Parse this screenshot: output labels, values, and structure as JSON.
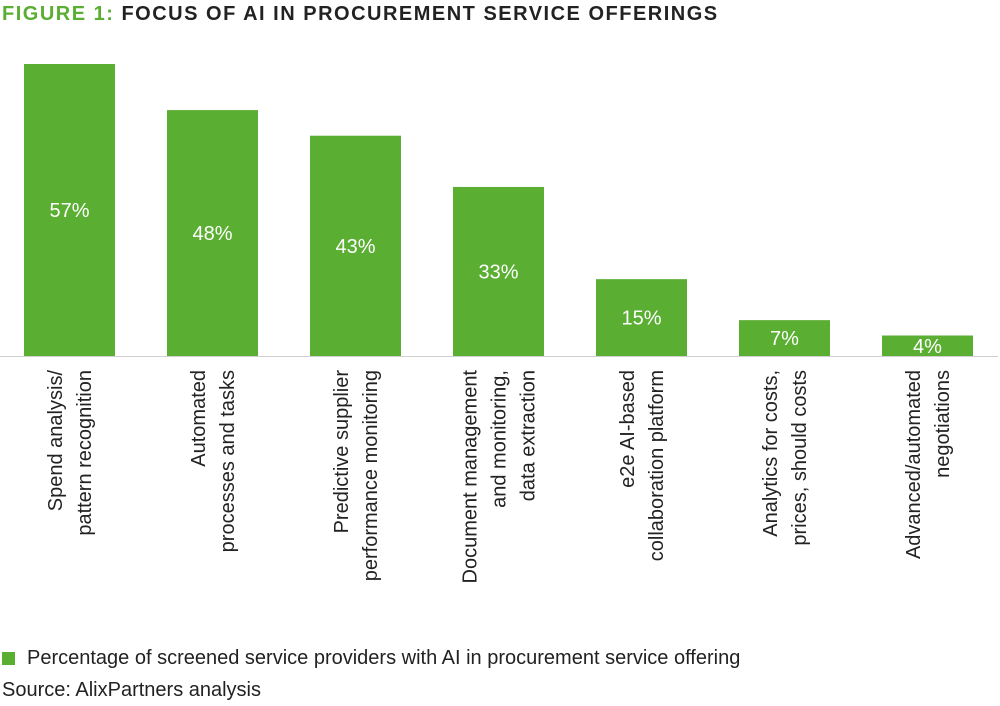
{
  "header": {
    "figure_prefix": "FIGURE 1:",
    "title_text": "FOCUS OF AI IN PROCUREMENT SERVICE OFFERINGS"
  },
  "chart_data": {
    "type": "bar",
    "title": "FIGURE 1: FOCUS OF AI IN PROCUREMENT SERVICE OFFERINGS",
    "categories": [
      [
        "Spend analysis/",
        "pattern recognition"
      ],
      [
        "Automated",
        "processes and tasks"
      ],
      [
        "Predictive supplier",
        "performance monitoring"
      ],
      [
        "Document management",
        "and monitoring,",
        "data extraction"
      ],
      [
        "e2e AI-based",
        "collaboration platform"
      ],
      [
        "Analytics for costs,",
        "prices, should costs"
      ],
      [
        "Advanced/automated",
        "negotiations"
      ]
    ],
    "series": [
      {
        "name": "Percentage of screened service providers with AI in procurement service offering",
        "values": [
          57,
          48,
          43,
          33,
          15,
          7,
          4
        ]
      }
    ],
    "value_labels": [
      "57%",
      "48%",
      "43%",
      "33%",
      "15%",
      "7%",
      "4%"
    ],
    "ylim": [
      0,
      60
    ],
    "grid": false,
    "bar_color": "#5aae32",
    "label_color": "#ffffff",
    "legend_position": "bottom-left"
  },
  "legend": {
    "label": "Percentage of screened service providers with AI in procurement service offering"
  },
  "source": {
    "text": "Source: AlixPartners analysis"
  }
}
